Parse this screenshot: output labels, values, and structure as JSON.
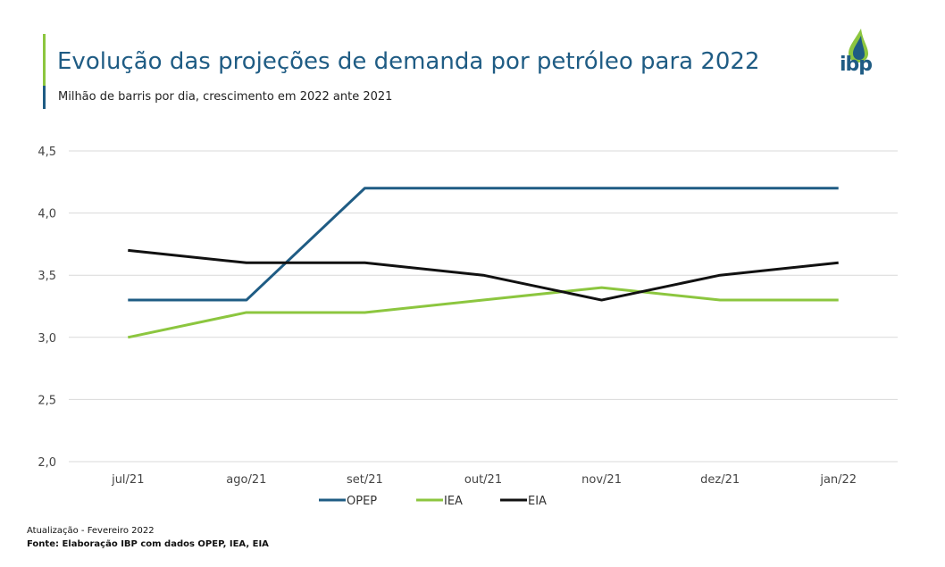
{
  "header": {
    "title": "Evolução das projeções de demanda por petróleo para 2022",
    "subtitle": "Milhão de barris por dia, crescimento em 2022 ante 2021",
    "logo_text": "ibp"
  },
  "colors": {
    "OPEP": "#1f5c84",
    "IEA": "#8cc63f",
    "EIA": "#111111",
    "grid": "#d9d9d9"
  },
  "chart_data": {
    "type": "line",
    "title": "Evolução das projeções de demanda por petróleo para 2022",
    "ylabel": "",
    "xlabel": "",
    "categories": [
      "jul/21",
      "ago/21",
      "set/21",
      "out/21",
      "nov/21",
      "dez/21",
      "jan/22"
    ],
    "ylim": [
      2.0,
      4.5
    ],
    "yticks": [
      "2,0",
      "2,5",
      "3,0",
      "3,5",
      "4,0",
      "4,5"
    ],
    "grid": true,
    "legend": "bottom",
    "series": [
      {
        "name": "OPEP",
        "values": [
          3.3,
          3.3,
          4.2,
          4.2,
          4.2,
          4.2,
          4.2
        ]
      },
      {
        "name": "IEA",
        "values": [
          3.0,
          3.2,
          3.2,
          3.3,
          3.4,
          3.3,
          3.3
        ]
      },
      {
        "name": "EIA",
        "values": [
          3.7,
          3.6,
          3.6,
          3.5,
          3.3,
          3.5,
          3.6
        ]
      }
    ]
  },
  "footer": {
    "update": "Atualização - Fevereiro 2022",
    "source": "Fonte: Elaboração IBP com dados OPEP, IEA, EIA"
  }
}
